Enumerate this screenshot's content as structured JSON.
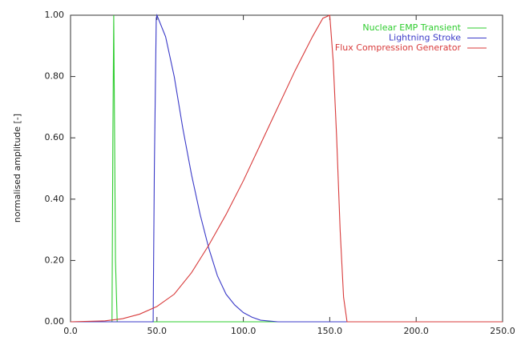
{
  "chart_data": {
    "type": "line",
    "ylabel": "normalised amplitude [-]",
    "xlim": [
      0,
      250
    ],
    "ylim": [
      0,
      1
    ],
    "xticks": [
      {
        "value": 0,
        "label": "0.0"
      },
      {
        "value": 50,
        "label": "50.0"
      },
      {
        "value": 100,
        "label": "100.0"
      },
      {
        "value": 150,
        "label": "150.0"
      },
      {
        "value": 200,
        "label": "200.0"
      },
      {
        "value": 250,
        "label": "250.0"
      }
    ],
    "yticks": [
      {
        "value": 0,
        "label": "0.00"
      },
      {
        "value": 0.2,
        "label": "0.20"
      },
      {
        "value": 0.4,
        "label": "0.40"
      },
      {
        "value": 0.6,
        "label": "0.60"
      },
      {
        "value": 0.8,
        "label": "0.80"
      },
      {
        "value": 1,
        "label": "1.00"
      }
    ],
    "grid": false,
    "legend": "top-right",
    "series": [
      {
        "name": "Nuclear EMP Transient",
        "color": "#2ecc2e",
        "x": [
          0,
          24,
          24.5,
          25,
          25.5,
          26,
          27,
          250
        ],
        "values": [
          0,
          0,
          0.6,
          1.0,
          0.6,
          0.2,
          0,
          0
        ]
      },
      {
        "name": "Lightning Stroke",
        "color": "#3a3ac8",
        "x": [
          0,
          47.8,
          48.5,
          49.6,
          50,
          55,
          60,
          65,
          70,
          75,
          80,
          85,
          90,
          95,
          100,
          105,
          110,
          120,
          250
        ],
        "values": [
          0,
          0,
          0.5,
          0.99,
          1.0,
          0.93,
          0.8,
          0.63,
          0.48,
          0.35,
          0.24,
          0.15,
          0.09,
          0.055,
          0.03,
          0.015,
          0.005,
          0,
          0
        ]
      },
      {
        "name": "Flux Compression Generator",
        "color": "#d83a3a",
        "x": [
          0,
          20,
          30,
          40,
          50,
          60,
          70,
          80,
          90,
          100,
          110,
          120,
          130,
          140,
          146,
          150,
          152,
          154,
          156,
          158,
          160,
          250
        ],
        "values": [
          0,
          0.003,
          0.01,
          0.025,
          0.05,
          0.09,
          0.16,
          0.25,
          0.35,
          0.46,
          0.58,
          0.7,
          0.82,
          0.93,
          0.99,
          1.0,
          0.85,
          0.6,
          0.3,
          0.08,
          0,
          0
        ]
      }
    ]
  }
}
